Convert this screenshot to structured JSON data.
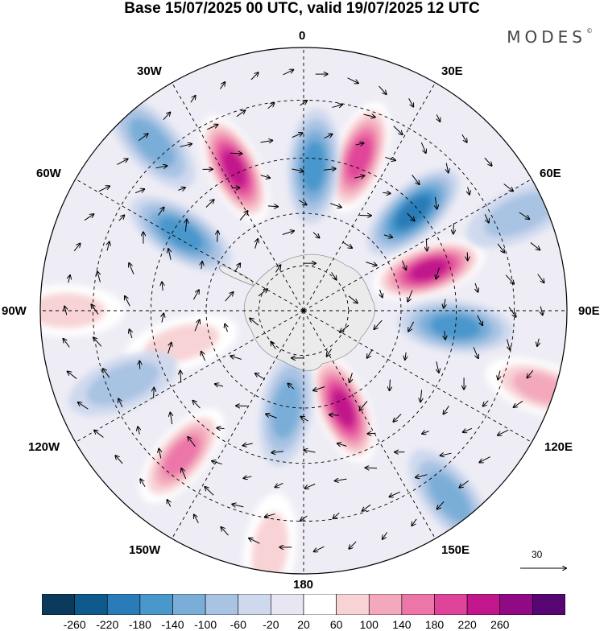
{
  "title": "Base 15/07/2025 00 UTC, valid 19/07/2025 12 UTC",
  "brand": "MODES",
  "brand_mark": "©",
  "projection": "south-polar-stereographic",
  "longitude_labels": [
    "0",
    "30E",
    "60E",
    "90E",
    "120E",
    "150E",
    "180",
    "150W",
    "120W",
    "90W",
    "60W",
    "30W"
  ],
  "vector_scale_label": "30",
  "colorbar": {
    "ticks": [
      "-260",
      "-220",
      "-180",
      "-140",
      "-100",
      "-60",
      "-20",
      "20",
      "60",
      "100",
      "140",
      "180",
      "220",
      "260"
    ],
    "colors": [
      "#0b3a5c",
      "#0f5a8c",
      "#2a7cb8",
      "#4a97cc",
      "#7aaed8",
      "#a9c3e3",
      "#cfd9ee",
      "#e9e6f3",
      "#ffffff",
      "#f8d3d6",
      "#f3a9bb",
      "#ec76a8",
      "#e0449a",
      "#c2168c",
      "#900a86",
      "#560573"
    ]
  },
  "anomalies": [
    {
      "lon": 20,
      "lat_frac": 0.62,
      "value": 180
    },
    {
      "lon": 4,
      "lat_frac": 0.55,
      "value": -140
    },
    {
      "lon": 334,
      "lat_frac": 0.6,
      "value": 220
    },
    {
      "lon": 318,
      "lat_frac": 0.86,
      "value": -100
    },
    {
      "lon": 302,
      "lat_frac": 0.55,
      "value": -140
    },
    {
      "lon": 48,
      "lat_frac": 0.56,
      "value": -180
    },
    {
      "lon": 72,
      "lat_frac": 0.5,
      "value": 220
    },
    {
      "lon": 96,
      "lat_frac": 0.58,
      "value": -140
    },
    {
      "lon": 66,
      "lat_frac": 0.9,
      "value": -60
    },
    {
      "lon": 108,
      "lat_frac": 0.95,
      "value": 100
    },
    {
      "lon": 158,
      "lat_frac": 0.4,
      "value": 220
    },
    {
      "lon": 190,
      "lat_frac": 0.38,
      "value": -100
    },
    {
      "lon": 142,
      "lat_frac": 0.9,
      "value": -100
    },
    {
      "lon": 220,
      "lat_frac": 0.72,
      "value": 140
    },
    {
      "lon": 255,
      "lat_frac": 0.48,
      "value": 60
    },
    {
      "lon": 248,
      "lat_frac": 0.74,
      "value": -60
    },
    {
      "lon": 188,
      "lat_frac": 0.92,
      "value": 60
    },
    {
      "lon": 270,
      "lat_frac": 0.9,
      "value": 60
    }
  ]
}
